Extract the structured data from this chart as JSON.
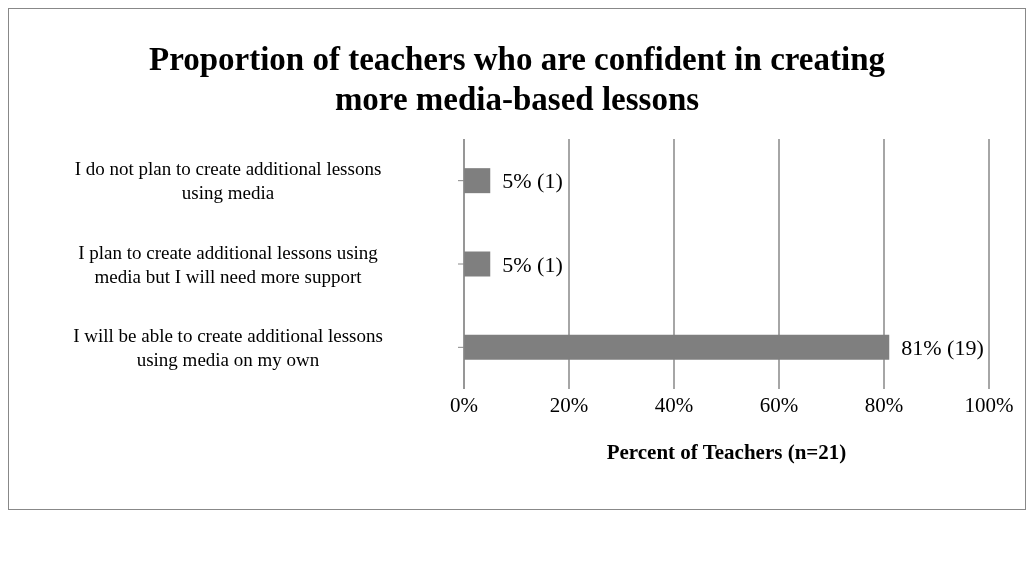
{
  "chart_data": {
    "type": "bar",
    "orientation": "horizontal",
    "title": "Proportion of teachers who are confident in creating more media-based lessons",
    "xlabel": "Percent of Teachers (n=21)",
    "categories": [
      "I do not plan to create additional lessons using media",
      "I plan to create additional lessons using media but I will need more support",
      "I will be able to create additional lessons using media on my own"
    ],
    "values": [
      5,
      5,
      81
    ],
    "value_labels": [
      "5% (1)",
      "5% (1)",
      "81% (19)"
    ],
    "color": "#7f7f7f",
    "xlim": [
      0,
      100
    ],
    "xticks": [
      {
        "value": 0,
        "label": "0%"
      },
      {
        "value": 20,
        "label": "20%"
      },
      {
        "value": 40,
        "label": "40%"
      },
      {
        "value": 60,
        "label": "60%"
      },
      {
        "value": 80,
        "label": "80%"
      },
      {
        "value": 100,
        "label": "100%"
      }
    ],
    "grid": "x"
  }
}
